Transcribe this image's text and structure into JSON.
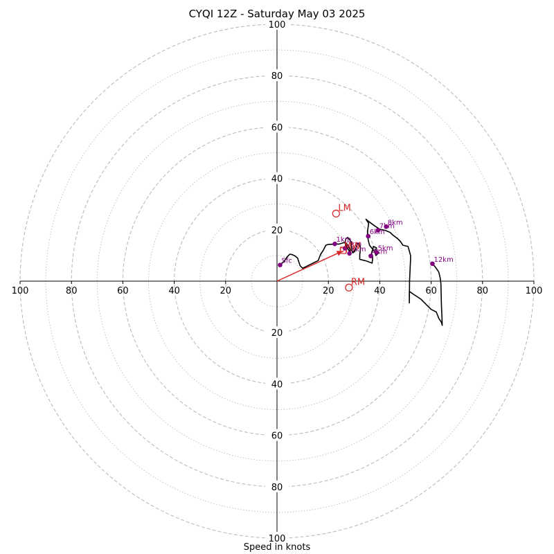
{
  "chart_data": {
    "type": "hodograph",
    "title": "CYQI 12Z - Saturday May 03 2025",
    "xlabel": "Speed in knots",
    "ylabel": "",
    "xlim": [
      -100,
      100
    ],
    "ylim": [
      -100,
      100
    ],
    "ring_major_step": 20,
    "ring_minor_step": 10,
    "tick_values": [
      20,
      40,
      60,
      80,
      100
    ],
    "tick_labels": [
      "20",
      "40",
      "60",
      "80",
      "100"
    ],
    "colors": {
      "profile": "#000000",
      "height": "#800080",
      "motion": "#d62728",
      "grid": "#bbbbbb"
    },
    "profile": [
      [
        1.2,
        6.3
      ],
      [
        3,
        8
      ],
      [
        4,
        9.5
      ],
      [
        5,
        10.5
      ],
      [
        6,
        10.3
      ],
      [
        7,
        9.8
      ],
      [
        8,
        9
      ],
      [
        8.5,
        7.5
      ],
      [
        9,
        6
      ],
      [
        10,
        5
      ],
      [
        12,
        6
      ],
      [
        14,
        7
      ],
      [
        16,
        8
      ],
      [
        17,
        10.5
      ],
      [
        18,
        12
      ],
      [
        19,
        14
      ],
      [
        20,
        14.3
      ],
      [
        22,
        14.4
      ],
      [
        23,
        14.5
      ],
      [
        24,
        14.4
      ],
      [
        25,
        14.7
      ],
      [
        26,
        15
      ],
      [
        27,
        14.8
      ],
      [
        27.5,
        14
      ],
      [
        28,
        13.2
      ],
      [
        28.5,
        12.3
      ],
      [
        28.5,
        11.2
      ],
      [
        27.8,
        12.3
      ],
      [
        27,
        13.5
      ],
      [
        26.5,
        15
      ],
      [
        26.8,
        16.5
      ],
      [
        27.5,
        17
      ],
      [
        28,
        16.5
      ],
      [
        28.7,
        15.5
      ],
      [
        29,
        13.8
      ],
      [
        29.2,
        12
      ],
      [
        29.5,
        11
      ],
      [
        30.2,
        11.5
      ],
      [
        30.6,
        12.5
      ],
      [
        31,
        13.6
      ],
      [
        31.3,
        14.6
      ],
      [
        32,
        14.8
      ],
      [
        32.5,
        12.7
      ],
      [
        32.2,
        10.3
      ],
      [
        32.2,
        8.5
      ],
      [
        33,
        8.3
      ],
      [
        35,
        7.8
      ],
      [
        37,
        7
      ],
      [
        37.2,
        8.5
      ],
      [
        37.2,
        9.8
      ],
      [
        36.8,
        11
      ],
      [
        37.3,
        12.5
      ],
      [
        37.5,
        13.3
      ],
      [
        37.5,
        13.5
      ],
      [
        38.7,
        13
      ],
      [
        38.5,
        12.2
      ],
      [
        38.8,
        11.3
      ],
      [
        39.7,
        11.1
      ],
      [
        38.5,
        10
      ],
      [
        38,
        11.5
      ],
      [
        37,
        12.7
      ],
      [
        36,
        14
      ],
      [
        35.5,
        16
      ],
      [
        35.2,
        18
      ],
      [
        35.3,
        20
      ],
      [
        35.7,
        22.5
      ],
      [
        34.6,
        24.1
      ],
      [
        36,
        23
      ],
      [
        38,
        21.5
      ],
      [
        40,
        20.2
      ],
      [
        42,
        19.8
      ],
      [
        44,
        19
      ],
      [
        45,
        18
      ],
      [
        47,
        16.5
      ],
      [
        48,
        15.5
      ],
      [
        49,
        14
      ],
      [
        51,
        13.5
      ],
      [
        52,
        10
      ],
      [
        52,
        8.7
      ],
      [
        51.6,
        0
      ],
      [
        51.5,
        -8.5
      ],
      [
        51.5,
        -4
      ],
      [
        53,
        -5
      ],
      [
        56,
        -7
      ],
      [
        58,
        -9
      ],
      [
        60,
        -11
      ],
      [
        62,
        -12
      ],
      [
        63,
        -14.5
      ],
      [
        64,
        -16
      ],
      [
        64.3,
        -17.2
      ],
      [
        64.2,
        -14
      ],
      [
        64,
        -9
      ],
      [
        63.8,
        -1
      ],
      [
        63.5,
        1.3
      ],
      [
        63,
        3.5
      ],
      [
        62,
        5
      ],
      [
        60.5,
        6.8
      ]
    ],
    "height_markers": [
      {
        "label": "Sfc",
        "x": 1.2,
        "y": 6.3
      },
      {
        "label": "1km",
        "x": 22.5,
        "y": 14.5
      },
      {
        "label": "2km",
        "x": 26.5,
        "y": 12.8
      },
      {
        "label": "3km",
        "x": 28.2,
        "y": 10.8
      },
      {
        "label": "4km",
        "x": 36.5,
        "y": 9.8
      },
      {
        "label": "5km",
        "x": 38.7,
        "y": 11.2
      },
      {
        "label": "6km",
        "x": 35.5,
        "y": 17.5
      },
      {
        "label": "7km",
        "x": 39.3,
        "y": 19.8
      },
      {
        "label": "8km",
        "x": 42.5,
        "y": 21.2
      },
      {
        "label": "12km",
        "x": 60.5,
        "y": 6.8
      }
    ],
    "storm_motions": [
      {
        "label": "LM",
        "x": 23,
        "y": 26.3
      },
      {
        "label": "RM",
        "x": 28,
        "y": -2.5
      }
    ],
    "mean_wind": {
      "label": "MW",
      "x": 25.8,
      "y": 12,
      "box_label": "DTM"
    },
    "shear_vector": {
      "from": [
        0,
        0
      ],
      "to": [
        25.5,
        11.7
      ]
    }
  }
}
